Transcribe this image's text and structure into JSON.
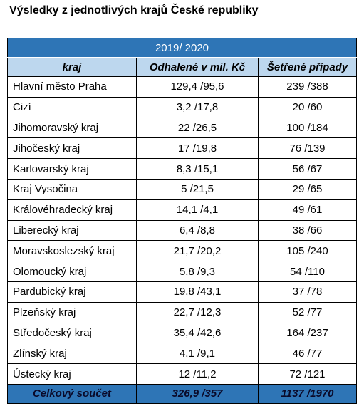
{
  "page": {
    "title": "Výsledky z jednotlivých krajů České republiky"
  },
  "table": {
    "period": "2019/ 2020",
    "headers": [
      "kraj",
      "Odhalené v mil. Kč",
      "Šetřené případy"
    ],
    "rows": [
      [
        "Hlavní město Praha",
        "129,4 /95,6",
        "239 /388"
      ],
      [
        "Cizí",
        "3,2 /17,8",
        "20 /60"
      ],
      [
        "Jihomoravský kraj",
        "22 /26,5",
        "100 /184"
      ],
      [
        "Jihočeský kraj",
        "17 /19,8",
        "76 /139"
      ],
      [
        "Karlovarský kraj",
        "8,3 /15,1",
        "56 /67"
      ],
      [
        "Kraj Vysočina",
        "5 /21,5",
        "29 /65"
      ],
      [
        "Královéhradecký kraj",
        "14,1 /4,1",
        "49 /61"
      ],
      [
        "Liberecký kraj",
        "6,4 /8,8",
        "38 /66"
      ],
      [
        "Moravskoslezský kraj",
        "21,7 /20,2",
        "105 /240"
      ],
      [
        "Olomoucký kraj",
        "5,8 /9,3",
        "54 /110"
      ],
      [
        "Pardubický kraj",
        "19,8 /43,1",
        "37 /78"
      ],
      [
        "Plzeňský kraj",
        "22,7 /12,3",
        "52 /77"
      ],
      [
        "Středočeský kraj",
        "35,4 /42,6",
        "164 /237"
      ],
      [
        "Zlínský kraj",
        "4,1 /9,1",
        "46 /77"
      ],
      [
        "Ústecký kraj",
        "12 /11,2",
        "72 /121"
      ]
    ],
    "total": [
      "Celkový součet",
      "326,9 /357",
      "1137 /1970"
    ]
  },
  "colors": {
    "period_bg": "#2e75b6",
    "header_bg": "#bdd7ee",
    "total_bg": "#2e75b6"
  }
}
